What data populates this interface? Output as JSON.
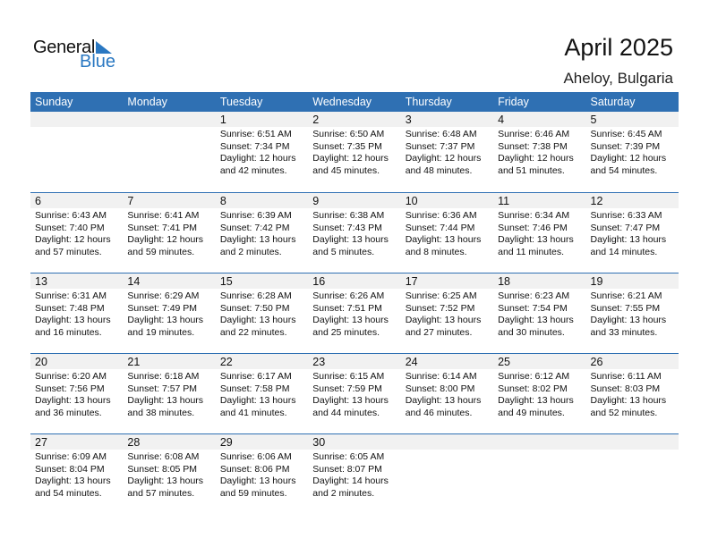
{
  "logo": {
    "text1": "General",
    "text2": "Blue"
  },
  "title": "April 2025",
  "location": "Aheloy, Bulgaria",
  "days": [
    "Sunday",
    "Monday",
    "Tuesday",
    "Wednesday",
    "Thursday",
    "Friday",
    "Saturday"
  ],
  "weeks": [
    [
      null,
      null,
      {
        "d": "1",
        "rise": "Sunrise: 6:51 AM",
        "set": "Sunset: 7:34 PM",
        "dl1": "Daylight: 12 hours",
        "dl2": "and 42 minutes."
      },
      {
        "d": "2",
        "rise": "Sunrise: 6:50 AM",
        "set": "Sunset: 7:35 PM",
        "dl1": "Daylight: 12 hours",
        "dl2": "and 45 minutes."
      },
      {
        "d": "3",
        "rise": "Sunrise: 6:48 AM",
        "set": "Sunset: 7:37 PM",
        "dl1": "Daylight: 12 hours",
        "dl2": "and 48 minutes."
      },
      {
        "d": "4",
        "rise": "Sunrise: 6:46 AM",
        "set": "Sunset: 7:38 PM",
        "dl1": "Daylight: 12 hours",
        "dl2": "and 51 minutes."
      },
      {
        "d": "5",
        "rise": "Sunrise: 6:45 AM",
        "set": "Sunset: 7:39 PM",
        "dl1": "Daylight: 12 hours",
        "dl2": "and 54 minutes."
      }
    ],
    [
      {
        "d": "6",
        "rise": "Sunrise: 6:43 AM",
        "set": "Sunset: 7:40 PM",
        "dl1": "Daylight: 12 hours",
        "dl2": "and 57 minutes."
      },
      {
        "d": "7",
        "rise": "Sunrise: 6:41 AM",
        "set": "Sunset: 7:41 PM",
        "dl1": "Daylight: 12 hours",
        "dl2": "and 59 minutes."
      },
      {
        "d": "8",
        "rise": "Sunrise: 6:39 AM",
        "set": "Sunset: 7:42 PM",
        "dl1": "Daylight: 13 hours",
        "dl2": "and 2 minutes."
      },
      {
        "d": "9",
        "rise": "Sunrise: 6:38 AM",
        "set": "Sunset: 7:43 PM",
        "dl1": "Daylight: 13 hours",
        "dl2": "and 5 minutes."
      },
      {
        "d": "10",
        "rise": "Sunrise: 6:36 AM",
        "set": "Sunset: 7:44 PM",
        "dl1": "Daylight: 13 hours",
        "dl2": "and 8 minutes."
      },
      {
        "d": "11",
        "rise": "Sunrise: 6:34 AM",
        "set": "Sunset: 7:46 PM",
        "dl1": "Daylight: 13 hours",
        "dl2": "and 11 minutes."
      },
      {
        "d": "12",
        "rise": "Sunrise: 6:33 AM",
        "set": "Sunset: 7:47 PM",
        "dl1": "Daylight: 13 hours",
        "dl2": "and 14 minutes."
      }
    ],
    [
      {
        "d": "13",
        "rise": "Sunrise: 6:31 AM",
        "set": "Sunset: 7:48 PM",
        "dl1": "Daylight: 13 hours",
        "dl2": "and 16 minutes."
      },
      {
        "d": "14",
        "rise": "Sunrise: 6:29 AM",
        "set": "Sunset: 7:49 PM",
        "dl1": "Daylight: 13 hours",
        "dl2": "and 19 minutes."
      },
      {
        "d": "15",
        "rise": "Sunrise: 6:28 AM",
        "set": "Sunset: 7:50 PM",
        "dl1": "Daylight: 13 hours",
        "dl2": "and 22 minutes."
      },
      {
        "d": "16",
        "rise": "Sunrise: 6:26 AM",
        "set": "Sunset: 7:51 PM",
        "dl1": "Daylight: 13 hours",
        "dl2": "and 25 minutes."
      },
      {
        "d": "17",
        "rise": "Sunrise: 6:25 AM",
        "set": "Sunset: 7:52 PM",
        "dl1": "Daylight: 13 hours",
        "dl2": "and 27 minutes."
      },
      {
        "d": "18",
        "rise": "Sunrise: 6:23 AM",
        "set": "Sunset: 7:54 PM",
        "dl1": "Daylight: 13 hours",
        "dl2": "and 30 minutes."
      },
      {
        "d": "19",
        "rise": "Sunrise: 6:21 AM",
        "set": "Sunset: 7:55 PM",
        "dl1": "Daylight: 13 hours",
        "dl2": "and 33 minutes."
      }
    ],
    [
      {
        "d": "20",
        "rise": "Sunrise: 6:20 AM",
        "set": "Sunset: 7:56 PM",
        "dl1": "Daylight: 13 hours",
        "dl2": "and 36 minutes."
      },
      {
        "d": "21",
        "rise": "Sunrise: 6:18 AM",
        "set": "Sunset: 7:57 PM",
        "dl1": "Daylight: 13 hours",
        "dl2": "and 38 minutes."
      },
      {
        "d": "22",
        "rise": "Sunrise: 6:17 AM",
        "set": "Sunset: 7:58 PM",
        "dl1": "Daylight: 13 hours",
        "dl2": "and 41 minutes."
      },
      {
        "d": "23",
        "rise": "Sunrise: 6:15 AM",
        "set": "Sunset: 7:59 PM",
        "dl1": "Daylight: 13 hours",
        "dl2": "and 44 minutes."
      },
      {
        "d": "24",
        "rise": "Sunrise: 6:14 AM",
        "set": "Sunset: 8:00 PM",
        "dl1": "Daylight: 13 hours",
        "dl2": "and 46 minutes."
      },
      {
        "d": "25",
        "rise": "Sunrise: 6:12 AM",
        "set": "Sunset: 8:02 PM",
        "dl1": "Daylight: 13 hours",
        "dl2": "and 49 minutes."
      },
      {
        "d": "26",
        "rise": "Sunrise: 6:11 AM",
        "set": "Sunset: 8:03 PM",
        "dl1": "Daylight: 13 hours",
        "dl2": "and 52 minutes."
      }
    ],
    [
      {
        "d": "27",
        "rise": "Sunrise: 6:09 AM",
        "set": "Sunset: 8:04 PM",
        "dl1": "Daylight: 13 hours",
        "dl2": "and 54 minutes."
      },
      {
        "d": "28",
        "rise": "Sunrise: 6:08 AM",
        "set": "Sunset: 8:05 PM",
        "dl1": "Daylight: 13 hours",
        "dl2": "and 57 minutes."
      },
      {
        "d": "29",
        "rise": "Sunrise: 6:06 AM",
        "set": "Sunset: 8:06 PM",
        "dl1": "Daylight: 13 hours",
        "dl2": "and 59 minutes."
      },
      {
        "d": "30",
        "rise": "Sunrise: 6:05 AM",
        "set": "Sunset: 8:07 PM",
        "dl1": "Daylight: 14 hours",
        "dl2": "and 2 minutes."
      },
      null,
      null,
      null
    ]
  ]
}
